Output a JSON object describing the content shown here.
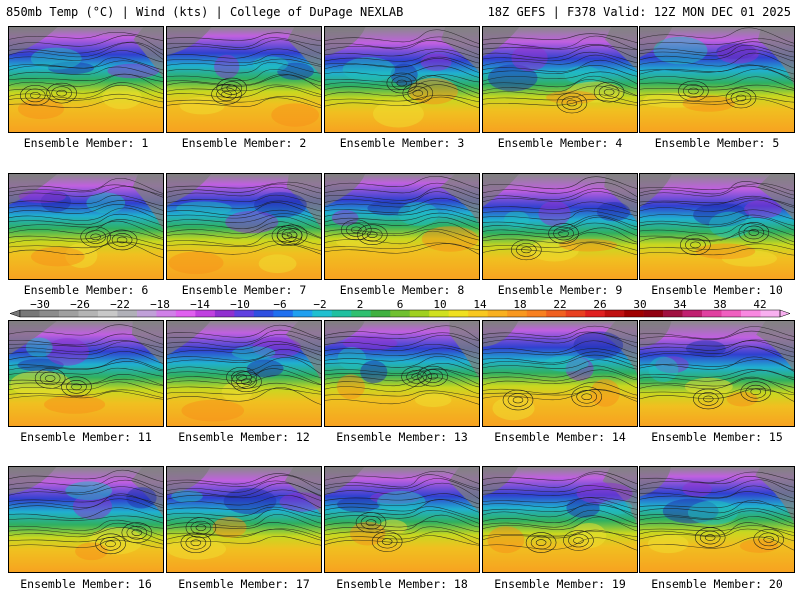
{
  "header": {
    "left": "850mb Temp (°C) | Wind (kts) | College of DuPage NEXLAB",
    "right": "18Z GEFS | F378 Valid: 12Z MON DEC 01 2025"
  },
  "panels": [
    {
      "label": "Ensemble Member: 1"
    },
    {
      "label": "Ensemble Member: 2"
    },
    {
      "label": "Ensemble Member: 3"
    },
    {
      "label": "Ensemble Member: 4"
    },
    {
      "label": "Ensemble Member: 5"
    },
    {
      "label": "Ensemble Member: 6"
    },
    {
      "label": "Ensemble Member: 7"
    },
    {
      "label": "Ensemble Member: 8"
    },
    {
      "label": "Ensemble Member: 9"
    },
    {
      "label": "Ensemble Member: 10"
    },
    {
      "label": "Ensemble Member: 11"
    },
    {
      "label": "Ensemble Member: 12"
    },
    {
      "label": "Ensemble Member: 13"
    },
    {
      "label": "Ensemble Member: 14"
    },
    {
      "label": "Ensemble Member: 15"
    },
    {
      "label": "Ensemble Member: 16"
    },
    {
      "label": "Ensemble Member: 17"
    },
    {
      "label": "Ensemble Member: 18"
    },
    {
      "label": "Ensemble Member: 19"
    },
    {
      "label": "Ensemble Member: 20"
    }
  ],
  "colorbar": {
    "tick_labels": [
      "−30",
      "−26",
      "−22",
      "−18",
      "−14",
      "−10",
      "−6",
      "−2",
      "2",
      "6",
      "10",
      "14",
      "18",
      "22",
      "26",
      "30",
      "34",
      "38",
      "42"
    ],
    "tick_values": [
      -30,
      -26,
      -22,
      -18,
      -14,
      -10,
      -6,
      -2,
      2,
      6,
      10,
      14,
      18,
      22,
      26,
      30,
      34,
      38,
      42
    ],
    "min": -32,
    "max": 44,
    "colors": [
      "#787878",
      "#8c8c8c",
      "#a0a0a0",
      "#b4b4b4",
      "#c8c8c8",
      "#b0b0b8",
      "#c0a0d8",
      "#d080e8",
      "#e060f0",
      "#c040e0",
      "#9030d0",
      "#6040e0",
      "#3050e0",
      "#2070f0",
      "#20a0f0",
      "#20c0d0",
      "#20c0a0",
      "#30c070",
      "#40b040",
      "#70c030",
      "#a0d020",
      "#d0e020",
      "#f0e020",
      "#f8c820",
      "#f8b020",
      "#f89820",
      "#f88020",
      "#f06020",
      "#e84020",
      "#e02020",
      "#c01010",
      "#a00000",
      "#900010",
      "#a01040",
      "#c02070",
      "#e040a0",
      "#f060c0",
      "#f888e0",
      "#f8b0f0"
    ]
  }
}
